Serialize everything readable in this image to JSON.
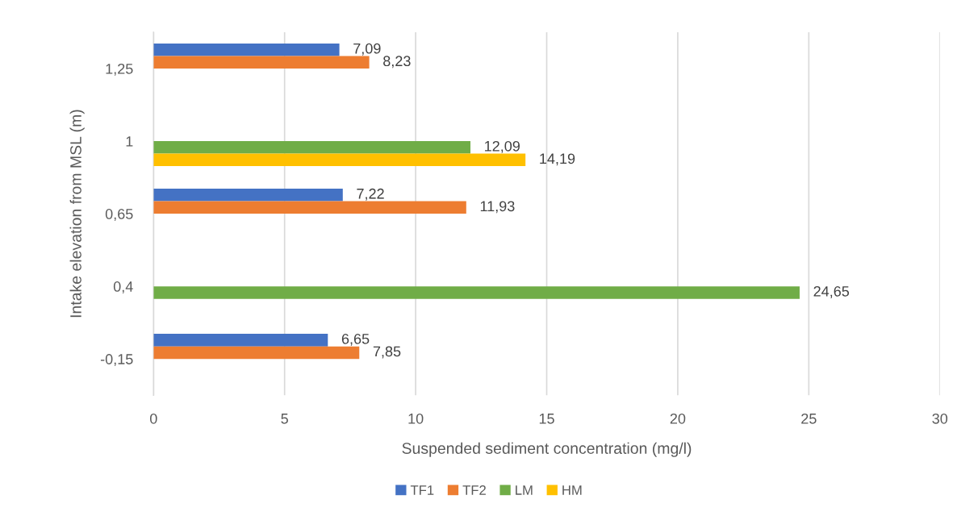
{
  "chart_data": {
    "type": "bar",
    "orientation": "horizontal",
    "xlabel": "Suspended sediment concentration (mg/l)",
    "ylabel": "Intake elevation from MSL (m)",
    "categories": [
      "1,25",
      "1",
      "0,65",
      "0,4",
      "-0,15"
    ],
    "series": [
      {
        "name": "TF1",
        "color": "#4472c4",
        "values": [
          7.09,
          null,
          7.22,
          null,
          6.65
        ],
        "value_labels": [
          "7,09",
          null,
          "7,22",
          null,
          "6,65"
        ]
      },
      {
        "name": "TF2",
        "color": "#ed7d31",
        "values": [
          8.23,
          null,
          11.93,
          null,
          7.85
        ],
        "value_labels": [
          "8,23",
          null,
          "11,93",
          null,
          "7,85"
        ]
      },
      {
        "name": "LM",
        "color": "#70ad47",
        "values": [
          null,
          12.09,
          null,
          24.65,
          null
        ],
        "value_labels": [
          null,
          "12,09",
          null,
          "24,65",
          null
        ]
      },
      {
        "name": "HM",
        "color": "#ffc000",
        "values": [
          null,
          14.19,
          null,
          null,
          null
        ],
        "value_labels": [
          null,
          "14,19",
          null,
          null,
          null
        ]
      }
    ],
    "xlim": [
      0,
      30
    ],
    "xticks": [
      0,
      5,
      10,
      15,
      20,
      25,
      30
    ],
    "grid": "x",
    "legend": "bottom"
  }
}
